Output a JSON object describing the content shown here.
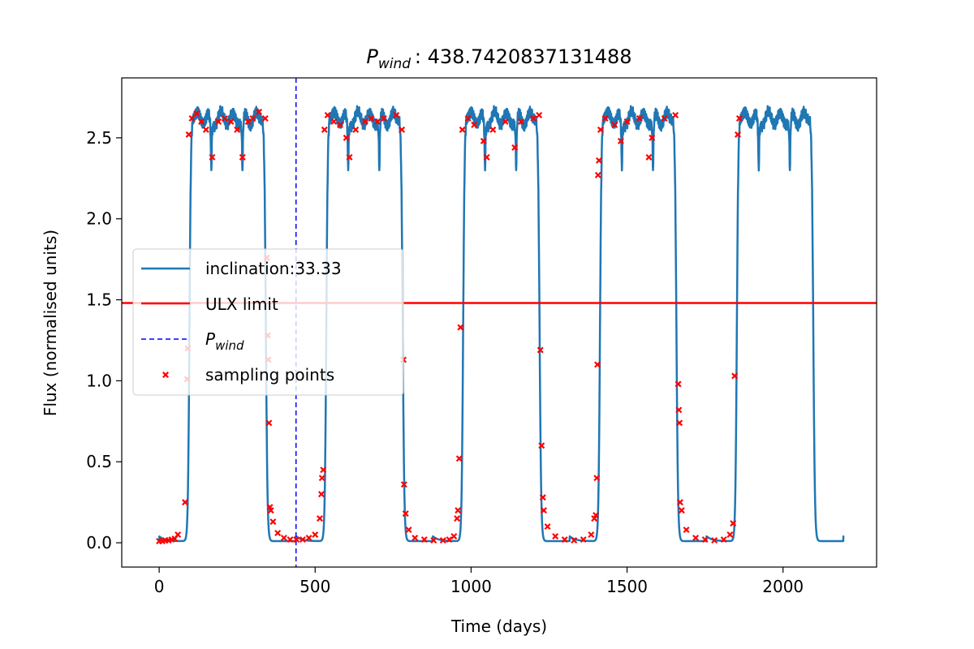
{
  "chart_data": {
    "type": "line",
    "title": {
      "symbol": "P",
      "subscript": "wind",
      "value": "438.7420837131488"
    },
    "xlabel": "Time (days)",
    "ylabel": "Flux (normalised units)",
    "xlim": [
      -120,
      2300
    ],
    "ylim": [
      -0.15,
      2.87
    ],
    "x_ticks": [
      0,
      500,
      1000,
      1500,
      2000
    ],
    "y_ticks": [
      0.0,
      0.5,
      1.0,
      1.5,
      2.0,
      2.5
    ],
    "y_tick_labels": [
      "0.0",
      "0.5",
      "1.0",
      "1.5",
      "2.0",
      "2.5"
    ],
    "grid": false,
    "legend_position": "center-left",
    "legend": [
      {
        "key": "lightcurve",
        "label": "inclination:33.33",
        "color": "#1f77b4"
      },
      {
        "key": "ulx",
        "label": "ULX limit",
        "color": "#ff0000"
      },
      {
        "key": "pwind",
        "label": "P",
        "label_sub": "wind",
        "color": "#0000ff"
      },
      {
        "key": "sampling",
        "label": "sampling points",
        "color": "#ff0000"
      }
    ],
    "ulx_limit": 1.48,
    "p_wind": 438.7420837131488,
    "lightcurve": {
      "series_name": "inclination:33.33",
      "color": "#1f77b4",
      "period": 438.74,
      "start": 0,
      "end": 2195,
      "high_start_phase": 97,
      "high_end_phase": 342,
      "high_level": 2.62,
      "low_level": 0.01,
      "dip_offsets": [
        70,
        170
      ],
      "dip_depth": 0.25
    },
    "sampling_points": {
      "color": "#ff0000",
      "marker": "x",
      "points": [
        [
          0,
          0.01
        ],
        [
          10,
          0.01
        ],
        [
          20,
          0.015
        ],
        [
          30,
          0.015
        ],
        [
          40,
          0.02
        ],
        [
          50,
          0.025
        ],
        [
          60,
          0.05
        ],
        [
          83,
          0.25
        ],
        [
          90,
          1.01
        ],
        [
          92,
          1.2
        ],
        [
          95,
          2.52
        ],
        [
          105,
          2.62
        ],
        [
          120,
          2.65
        ],
        [
          135,
          2.6
        ],
        [
          150,
          2.55
        ],
        [
          170,
          2.38
        ],
        [
          190,
          2.6
        ],
        [
          210,
          2.62
        ],
        [
          230,
          2.6
        ],
        [
          250,
          2.55
        ],
        [
          267,
          2.38
        ],
        [
          285,
          2.6
        ],
        [
          300,
          2.62
        ],
        [
          320,
          2.66
        ],
        [
          340,
          2.62
        ],
        [
          345,
          1.76
        ],
        [
          348,
          1.28
        ],
        [
          350,
          1.13
        ],
        [
          352,
          0.74
        ],
        [
          355,
          0.22
        ],
        [
          358,
          0.2
        ],
        [
          365,
          0.13
        ],
        [
          380,
          0.06
        ],
        [
          400,
          0.03
        ],
        [
          420,
          0.02
        ],
        [
          440,
          0.02
        ],
        [
          460,
          0.02
        ],
        [
          480,
          0.03
        ],
        [
          500,
          0.05
        ],
        [
          515,
          0.15
        ],
        [
          520,
          0.3
        ],
        [
          522,
          0.4
        ],
        [
          526,
          0.45
        ],
        [
          530,
          2.55
        ],
        [
          540,
          2.64
        ],
        [
          560,
          2.6
        ],
        [
          580,
          2.58
        ],
        [
          600,
          2.5
        ],
        [
          610,
          2.38
        ],
        [
          630,
          2.55
        ],
        [
          660,
          2.6
        ],
        [
          680,
          2.62
        ],
        [
          700,
          2.6
        ],
        [
          720,
          2.62
        ],
        [
          760,
          2.64
        ],
        [
          778,
          2.55
        ],
        [
          783,
          1.13
        ],
        [
          785,
          0.36
        ],
        [
          790,
          0.18
        ],
        [
          800,
          0.08
        ],
        [
          820,
          0.03
        ],
        [
          850,
          0.02
        ],
        [
          880,
          0.015
        ],
        [
          910,
          0.015
        ],
        [
          930,
          0.02
        ],
        [
          945,
          0.04
        ],
        [
          955,
          0.15
        ],
        [
          958,
          0.2
        ],
        [
          962,
          0.52
        ],
        [
          966,
          1.33
        ],
        [
          972,
          2.55
        ],
        [
          990,
          2.62
        ],
        [
          1010,
          2.58
        ],
        [
          1040,
          2.48
        ],
        [
          1050,
          2.38
        ],
        [
          1070,
          2.55
        ],
        [
          1110,
          2.6
        ],
        [
          1140,
          2.44
        ],
        [
          1160,
          2.6
        ],
        [
          1200,
          2.62
        ],
        [
          1218,
          2.64
        ],
        [
          1222,
          1.19
        ],
        [
          1226,
          0.6
        ],
        [
          1230,
          0.28
        ],
        [
          1233,
          0.2
        ],
        [
          1245,
          0.1
        ],
        [
          1270,
          0.04
        ],
        [
          1300,
          0.02
        ],
        [
          1330,
          0.015
        ],
        [
          1360,
          0.02
        ],
        [
          1385,
          0.05
        ],
        [
          1395,
          0.15
        ],
        [
          1400,
          0.17
        ],
        [
          1403,
          0.4
        ],
        [
          1405,
          1.1
        ],
        [
          1407,
          2.27
        ],
        [
          1410,
          2.36
        ],
        [
          1415,
          2.55
        ],
        [
          1430,
          2.62
        ],
        [
          1460,
          2.58
        ],
        [
          1480,
          2.48
        ],
        [
          1500,
          2.6
        ],
        [
          1540,
          2.62
        ],
        [
          1570,
          2.38
        ],
        [
          1580,
          2.5
        ],
        [
          1620,
          2.62
        ],
        [
          1655,
          2.64
        ],
        [
          1664,
          0.98
        ],
        [
          1666,
          0.82
        ],
        [
          1668,
          0.74
        ],
        [
          1670,
          0.25
        ],
        [
          1675,
          0.2
        ],
        [
          1690,
          0.08
        ],
        [
          1720,
          0.03
        ],
        [
          1750,
          0.02
        ],
        [
          1780,
          0.015
        ],
        [
          1810,
          0.02
        ],
        [
          1830,
          0.05
        ],
        [
          1840,
          0.12
        ],
        [
          1845,
          1.03
        ],
        [
          1855,
          2.52
        ],
        [
          1860,
          2.62
        ]
      ]
    }
  }
}
